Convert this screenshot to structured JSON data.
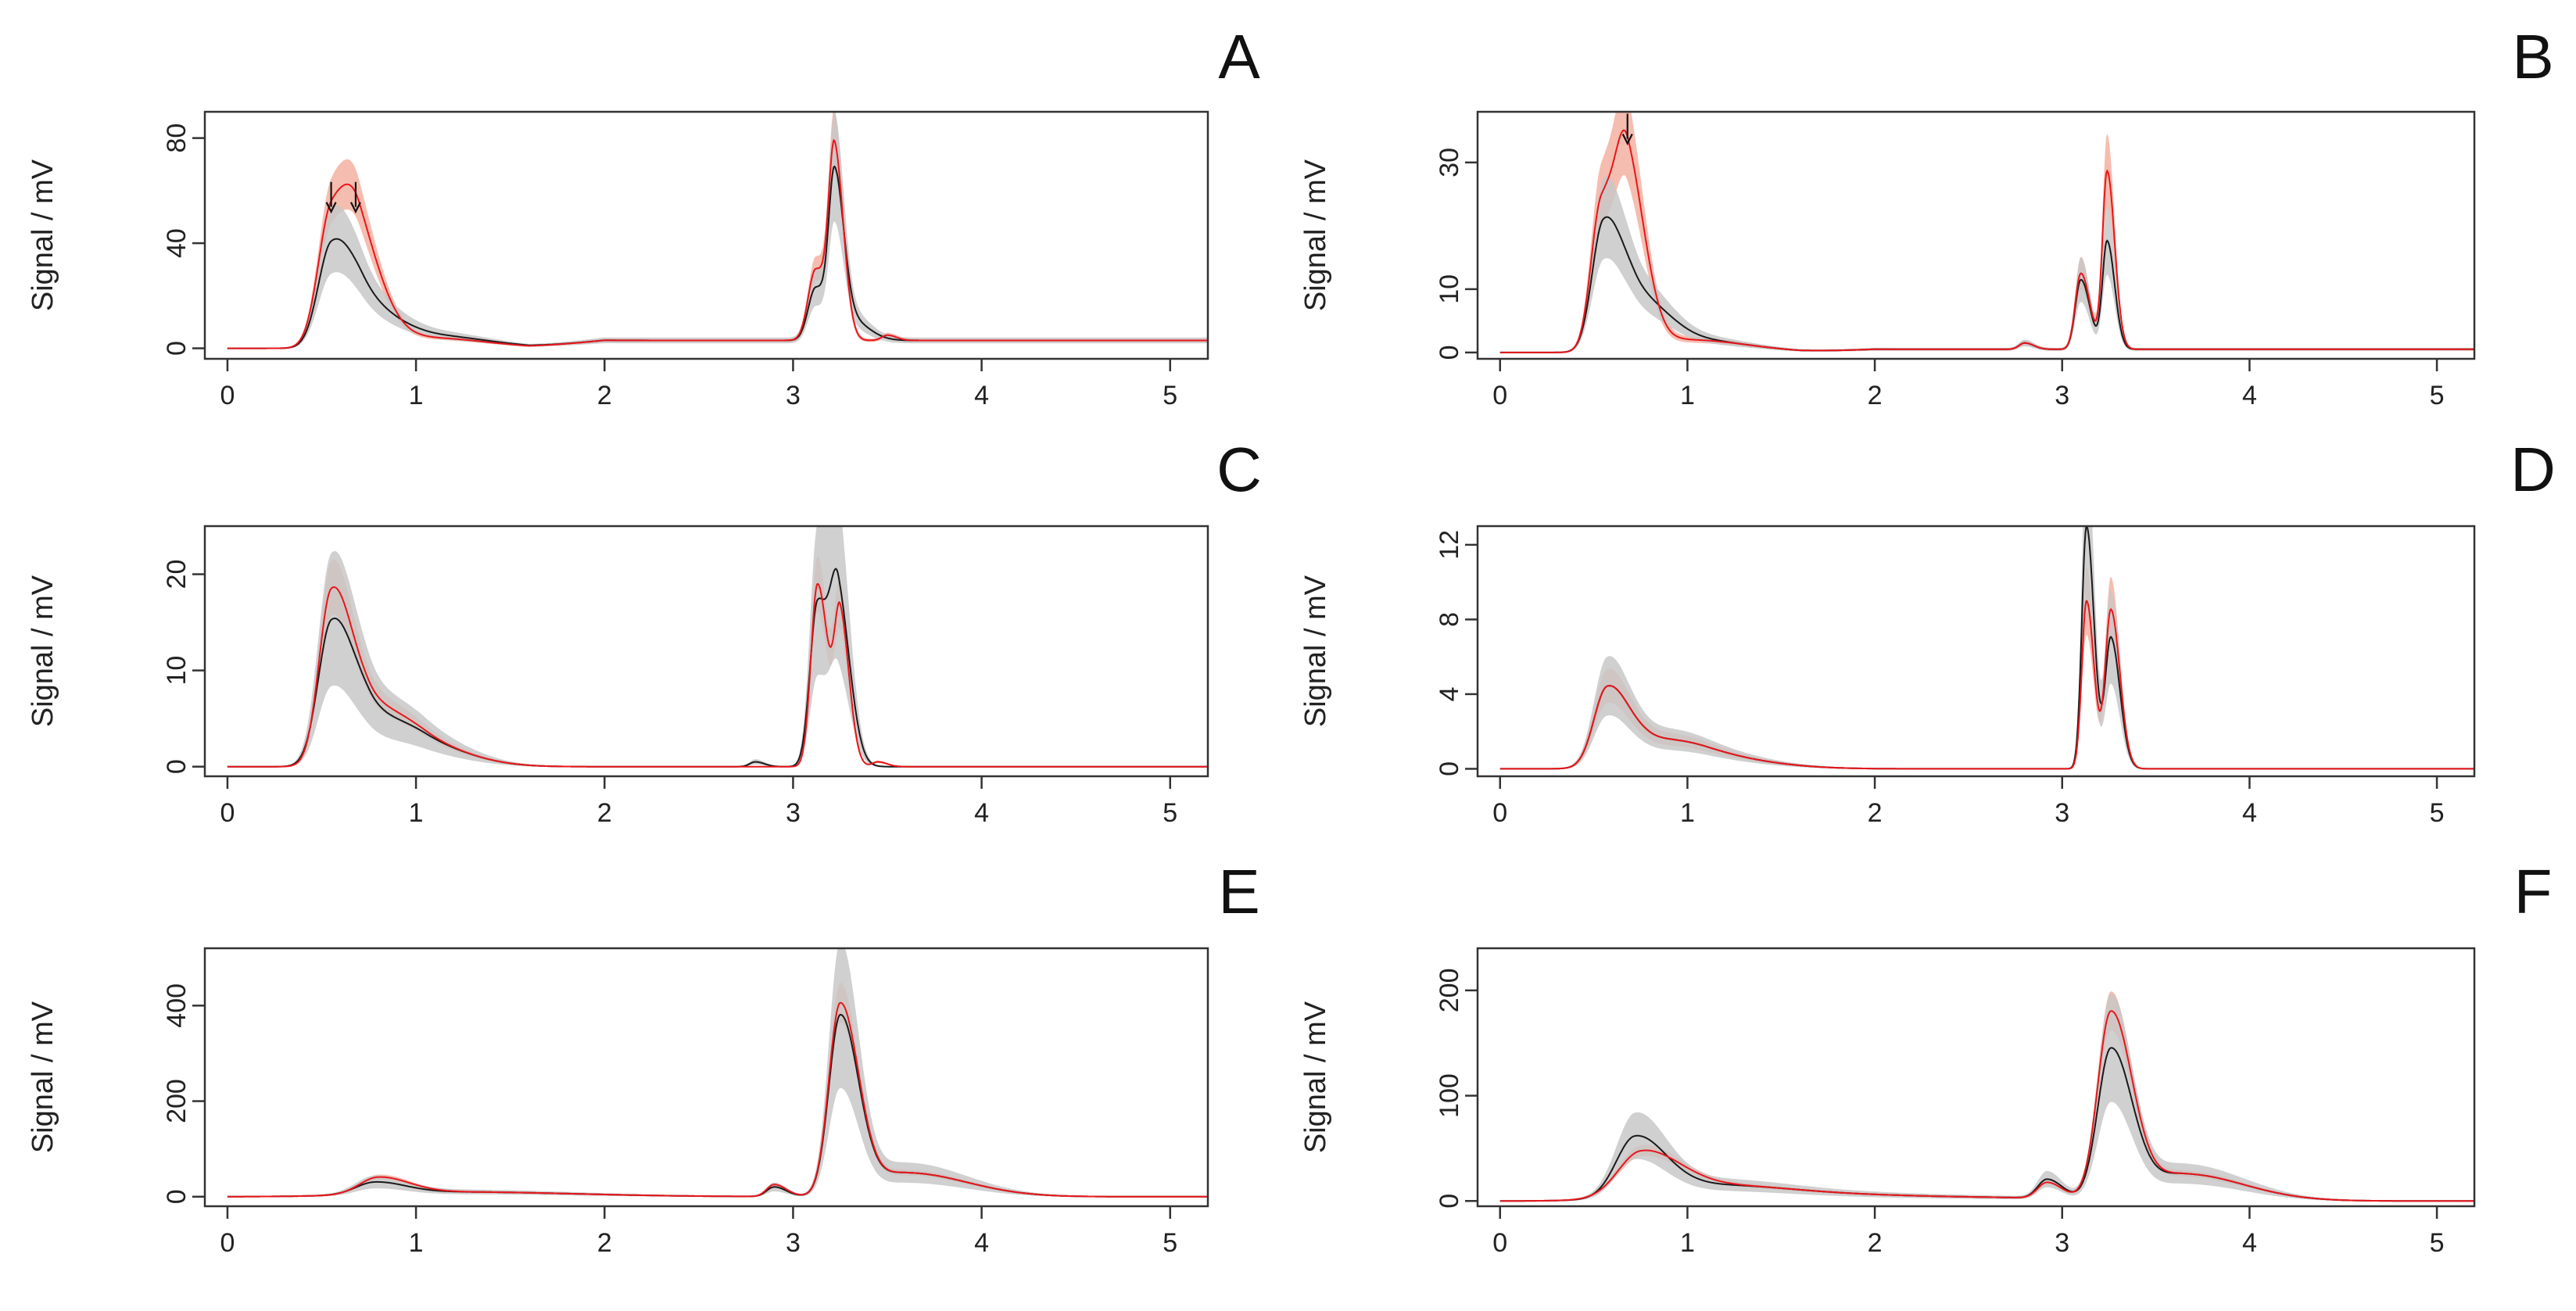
{
  "figure": {
    "description": "Six chromatogram panels, signal versus retention"
  },
  "colors": {
    "black_line": "#1a1a1a",
    "red_line": "#e8161b",
    "gray_band": "#c8c8c8",
    "red_band": "#f4b6a6",
    "axis": "#333333"
  },
  "chart_data": [
    {
      "panel": "A",
      "type": "line",
      "ylabel": "Signal / mV",
      "xlabel": "",
      "xlim": [
        -0.12,
        5.2
      ],
      "ylim": [
        -4,
        90
      ],
      "xticks": [
        "0",
        "1",
        "2",
        "3",
        "4",
        "5"
      ],
      "yticks": [
        "0",
        "40",
        "80"
      ],
      "ytick_values": [
        0,
        40,
        80
      ],
      "annotations": [
        {
          "type": "arrow",
          "x": 0.55,
          "y": 52
        },
        {
          "type": "arrow",
          "x": 0.68,
          "y": 52
        }
      ],
      "peaks_black": [
        [
          0.55,
          37,
          0.07
        ],
        [
          0.72,
          15,
          0.1
        ],
        [
          1.05,
          5,
          0.2
        ],
        [
          3.12,
          20,
          0.04
        ],
        [
          3.22,
          57,
          0.03
        ],
        [
          3.3,
          8,
          0.06
        ]
      ],
      "peaks_red": [
        [
          0.55,
          50,
          0.07
        ],
        [
          0.7,
          34,
          0.08
        ],
        [
          1.05,
          4,
          0.2
        ],
        [
          3.12,
          27,
          0.04
        ],
        [
          3.22,
          68,
          0.03
        ],
        [
          3.5,
          2,
          0.03
        ]
      ],
      "baseline_end": 3,
      "band_gray_scale": 0.3,
      "band_red_scale": 0.15
    },
    {
      "panel": "B",
      "type": "line",
      "ylabel": "Signal / mV",
      "xlabel": "",
      "xlim": [
        -0.12,
        5.2
      ],
      "ylim": [
        -1,
        38
      ],
      "xticks": [
        "0",
        "1",
        "2",
        "3",
        "4",
        "5"
      ],
      "yticks": [
        "0",
        "10",
        "30"
      ],
      "ytick_values": [
        0,
        10,
        30
      ],
      "annotations": [
        {
          "type": "arrow",
          "x": 0.68,
          "y": 33
        }
      ],
      "peaks_black": [
        [
          0.55,
          19,
          0.06
        ],
        [
          0.72,
          8,
          0.1
        ],
        [
          1.0,
          2,
          0.2
        ],
        [
          3.1,
          11,
          0.03
        ],
        [
          3.24,
          17,
          0.025
        ],
        [
          2.8,
          1,
          0.03
        ]
      ],
      "peaks_red": [
        [
          0.54,
          23,
          0.055
        ],
        [
          0.68,
          27,
          0.06
        ],
        [
          1.0,
          2,
          0.2
        ],
        [
          3.1,
          12,
          0.03
        ],
        [
          3.24,
          28,
          0.025
        ],
        [
          2.8,
          1,
          0.03
        ]
      ],
      "baseline_end": 0.5,
      "band_gray_scale": 0.3,
      "band_red_scale": 0.2
    },
    {
      "panel": "C",
      "type": "line",
      "ylabel": "Signal / mV",
      "xlabel": "",
      "xlim": [
        -0.12,
        5.2
      ],
      "ylim": [
        -1,
        25
      ],
      "xticks": [
        "0",
        "1",
        "2",
        "3",
        "4",
        "5"
      ],
      "yticks": [
        "0",
        "10",
        "20"
      ],
      "ytick_values": [
        0,
        10,
        20
      ],
      "annotations": [],
      "peaks_black": [
        [
          0.55,
          14,
          0.07
        ],
        [
          0.75,
          5,
          0.12
        ],
        [
          1.05,
          2,
          0.15
        ],
        [
          3.13,
          17,
          0.04
        ],
        [
          3.24,
          16,
          0.04
        ],
        [
          2.8,
          0.5,
          0.03
        ]
      ],
      "peaks_red": [
        [
          0.55,
          17,
          0.065
        ],
        [
          0.75,
          6,
          0.12
        ],
        [
          1.05,
          2,
          0.15
        ],
        [
          3.13,
          19,
          0.035
        ],
        [
          3.25,
          15,
          0.03
        ],
        [
          3.45,
          0.5,
          0.03
        ]
      ],
      "baseline_end": 0,
      "band_gray_scale": 0.45,
      "band_red_scale": 0.15
    },
    {
      "panel": "D",
      "type": "line",
      "ylabel": "Signal / mV",
      "xlabel": "",
      "xlim": [
        -0.12,
        5.2
      ],
      "ylim": [
        -0.4,
        13
      ],
      "xticks": [
        "0",
        "1",
        "2",
        "3",
        "4",
        "5"
      ],
      "yticks": [
        "0",
        "4",
        "8",
        "12"
      ],
      "ytick_values": [
        0,
        4,
        8,
        12
      ],
      "annotations": [],
      "peaks_black": [
        [
          0.57,
          4,
          0.07
        ],
        [
          0.8,
          1.3,
          0.15
        ],
        [
          1.1,
          0.6,
          0.2
        ],
        [
          3.13,
          13,
          0.025
        ],
        [
          3.26,
          7,
          0.03
        ]
      ],
      "peaks_red": [
        [
          0.57,
          4,
          0.07
        ],
        [
          0.8,
          1.3,
          0.15
        ],
        [
          1.1,
          0.6,
          0.2
        ],
        [
          3.13,
          9,
          0.025
        ],
        [
          3.26,
          8.5,
          0.03
        ]
      ],
      "baseline_end": 0,
      "band_gray_scale": 0.35,
      "band_red_scale": 0.2
    },
    {
      "panel": "E",
      "type": "line",
      "ylabel": "Signal / mV",
      "xlabel": "",
      "xlim": [
        -0.12,
        5.2
      ],
      "ylim": [
        -20,
        520
      ],
      "xticks": [
        "0",
        "1",
        "2",
        "3",
        "4",
        "5"
      ],
      "yticks": [
        "0",
        "200",
        "400"
      ],
      "ytick_values": [
        0,
        200,
        400
      ],
      "annotations": [],
      "peaks_black": [
        [
          0.78,
          25,
          0.1
        ],
        [
          1.2,
          10,
          0.4
        ],
        [
          2.9,
          20,
          0.04
        ],
        [
          3.25,
          370,
          0.06
        ],
        [
          3.6,
          50,
          0.2
        ]
      ],
      "peaks_red": [
        [
          0.8,
          35,
          0.1
        ],
        [
          1.2,
          10,
          0.4
        ],
        [
          2.9,
          25,
          0.04
        ],
        [
          3.25,
          395,
          0.06
        ],
        [
          3.6,
          50,
          0.2
        ]
      ],
      "baseline_end": 0,
      "band_gray_scale": 0.4,
      "band_red_scale": 0.1
    },
    {
      "panel": "F",
      "type": "line",
      "ylabel": "Signal / mV",
      "xlabel": "",
      "xlim": [
        -0.12,
        5.2
      ],
      "ylim": [
        -5,
        240
      ],
      "xticks": [
        "0",
        "1",
        "2",
        "3",
        "4",
        "5"
      ],
      "yticks": [
        "0",
        "100",
        "200"
      ],
      "ytick_values": [
        0,
        100,
        200
      ],
      "annotations": [],
      "peaks_black": [
        [
          0.72,
          55,
          0.1
        ],
        [
          1.1,
          15,
          0.3
        ],
        [
          2.2,
          4,
          0.5
        ],
        [
          2.92,
          18,
          0.05
        ],
        [
          3.26,
          140,
          0.07
        ],
        [
          3.65,
          25,
          0.2
        ]
      ],
      "peaks_red": [
        [
          0.75,
          40,
          0.12
        ],
        [
          1.1,
          15,
          0.3
        ],
        [
          2.2,
          4,
          0.5
        ],
        [
          2.92,
          15,
          0.05
        ],
        [
          3.26,
          175,
          0.07
        ],
        [
          3.65,
          25,
          0.2
        ]
      ],
      "baseline_end": 0,
      "band_gray_scale": 0.35,
      "band_red_scale": 0.1
    }
  ]
}
